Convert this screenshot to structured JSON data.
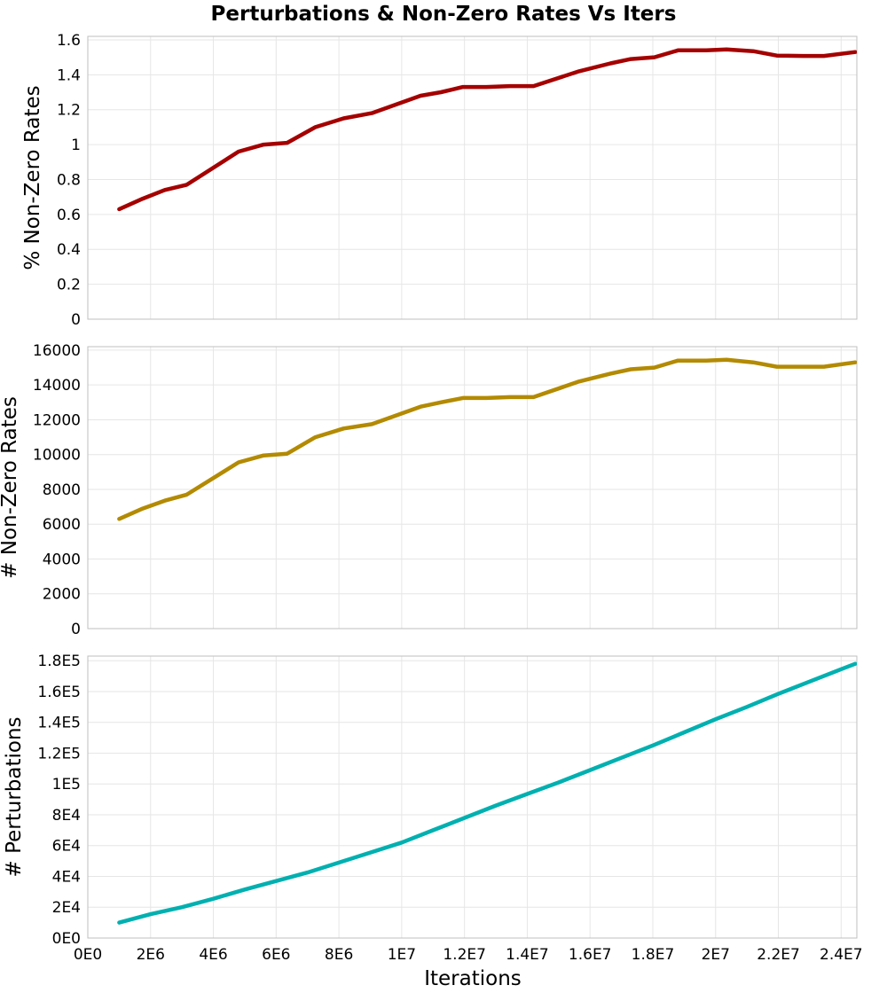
{
  "chart_data": {
    "type": "line",
    "title": "Perturbations & Non-Zero Rates Vs Iters",
    "xlabel": "Iterations",
    "xlim": [
      0,
      24500000
    ],
    "x_ticks": [
      {
        "value": 0,
        "label": "0E0"
      },
      {
        "value": 2000000,
        "label": "2E6"
      },
      {
        "value": 4000000,
        "label": "4E6"
      },
      {
        "value": 6000000,
        "label": "6E6"
      },
      {
        "value": 8000000,
        "label": "8E6"
      },
      {
        "value": 10000000,
        "label": "1E7"
      },
      {
        "value": 12000000,
        "label": "1.2E7"
      },
      {
        "value": 14000000,
        "label": "1.4E7"
      },
      {
        "value": 16000000,
        "label": "1.6E7"
      },
      {
        "value": 18000000,
        "label": "1.8E7"
      },
      {
        "value": 20000000,
        "label": "2E7"
      },
      {
        "value": 22000000,
        "label": "2.2E7"
      },
      {
        "value": 24000000,
        "label": "2.4E7"
      }
    ],
    "grid": true,
    "panels": [
      {
        "ylabel": "% Non-Zero Rates",
        "ylim": [
          0,
          1.62
        ],
        "color": "#a50000",
        "y_ticks": [
          {
            "value": 0,
            "label": "0"
          },
          {
            "value": 0.2,
            "label": "0.2"
          },
          {
            "value": 0.4,
            "label": "0.4"
          },
          {
            "value": 0.6,
            "label": "0.6"
          },
          {
            "value": 0.8,
            "label": "0.8"
          },
          {
            "value": 1,
            "label": "1"
          },
          {
            "value": 1.2,
            "label": "1.2"
          },
          {
            "value": 1.4,
            "label": "1.4"
          },
          {
            "value": 1.6,
            "label": "1.6"
          }
        ],
        "x": [
          1000000,
          1750000,
          2450000,
          3150000,
          4800000,
          5600000,
          6350000,
          7250000,
          8150000,
          9050000,
          10600000,
          11250000,
          11950000,
          12700000,
          13450000,
          14200000,
          15650000,
          16650000,
          17300000,
          18050000,
          18800000,
          19700000,
          20350000,
          21200000,
          21950000,
          22800000,
          23450000,
          24450000
        ],
        "y": [
          0.63,
          0.69,
          0.74,
          0.77,
          0.96,
          1.0,
          1.01,
          1.1,
          1.15,
          1.18,
          1.28,
          1.3,
          1.33,
          1.33,
          1.335,
          1.335,
          1.42,
          1.465,
          1.49,
          1.5,
          1.54,
          1.54,
          1.545,
          1.535,
          1.51,
          1.508,
          1.508,
          1.53
        ]
      },
      {
        "ylabel": "# Non-Zero Rates",
        "ylim": [
          0,
          16200
        ],
        "color": "#b38a00",
        "y_ticks": [
          {
            "value": 0,
            "label": "0"
          },
          {
            "value": 2000,
            "label": "2000"
          },
          {
            "value": 4000,
            "label": "4000"
          },
          {
            "value": 6000,
            "label": "6000"
          },
          {
            "value": 8000,
            "label": "8000"
          },
          {
            "value": 10000,
            "label": "10000"
          },
          {
            "value": 12000,
            "label": "12000"
          },
          {
            "value": 14000,
            "label": "14000"
          },
          {
            "value": 16000,
            "label": "16000"
          }
        ],
        "x": [
          1000000,
          1750000,
          2450000,
          3150000,
          4800000,
          5600000,
          6350000,
          7250000,
          8150000,
          9050000,
          10600000,
          11250000,
          11950000,
          12700000,
          13450000,
          14200000,
          15650000,
          16650000,
          17300000,
          18050000,
          18800000,
          19700000,
          20350000,
          21200000,
          21950000,
          22800000,
          23450000,
          24450000
        ],
        "y": [
          6300,
          6900,
          7350,
          7700,
          9550,
          9950,
          10050,
          11000,
          11500,
          11750,
          12750,
          13000,
          13250,
          13250,
          13300,
          13300,
          14200,
          14650,
          14900,
          15000,
          15400,
          15400,
          15450,
          15300,
          15050,
          15050,
          15050,
          15300
        ]
      },
      {
        "ylabel": "# Perturbations",
        "ylim": [
          0,
          183000
        ],
        "color": "#00b0b0",
        "y_ticks": [
          {
            "value": 0,
            "label": "0E0"
          },
          {
            "value": 20000,
            "label": "2E4"
          },
          {
            "value": 40000,
            "label": "4E4"
          },
          {
            "value": 60000,
            "label": "6E4"
          },
          {
            "value": 80000,
            "label": "8E4"
          },
          {
            "value": 100000,
            "label": "1E5"
          },
          {
            "value": 120000,
            "label": "1.2E5"
          },
          {
            "value": 140000,
            "label": "1.4E5"
          },
          {
            "value": 160000,
            "label": "1.6E5"
          },
          {
            "value": 180000,
            "label": "1.8E5"
          }
        ],
        "x": [
          1000000,
          2000000,
          3000000,
          4000000,
          5000000,
          6000000,
          7000000,
          8000000,
          9000000,
          10000000,
          11000000,
          12000000,
          13000000,
          14000000,
          15000000,
          16000000,
          17000000,
          18000000,
          19000000,
          20000000,
          21000000,
          22000000,
          23000000,
          24000000,
          24450000
        ],
        "y": [
          10000,
          15500,
          20000,
          25500,
          31500,
          37000,
          42500,
          49000,
          55500,
          62000,
          70000,
          78000,
          86000,
          93500,
          101000,
          109000,
          117000,
          125000,
          133500,
          142000,
          150000,
          158500,
          166500,
          174500,
          178000
        ]
      }
    ]
  }
}
